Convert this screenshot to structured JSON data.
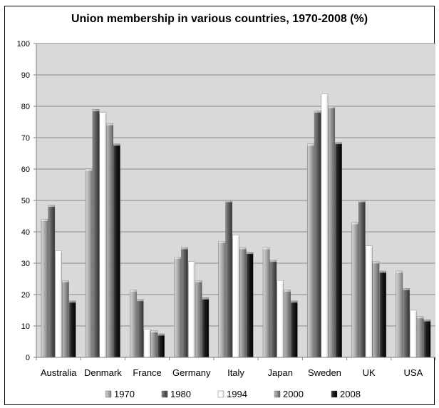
{
  "chart_data": {
    "type": "bar",
    "title": "Union membership in various countries, 1970-2008 (%)",
    "xlabel": "",
    "ylabel": "",
    "ylim": [
      0,
      100
    ],
    "yticks": [
      "0",
      "10",
      "20",
      "30",
      "40",
      "50",
      "60",
      "70",
      "80",
      "90",
      "100"
    ],
    "grid": true,
    "legend_position": "bottom",
    "categories": [
      "Australia",
      "Denmark",
      "France",
      "Germany",
      "Italy",
      "Japan",
      "Sweden",
      "UK",
      "USA"
    ],
    "series": [
      {
        "name": "1970",
        "color": "#a6a6a6",
        "values": [
          44,
          60,
          21.5,
          32,
          37,
          35,
          68,
          43,
          27.5
        ]
      },
      {
        "name": "1980",
        "color": "#595959",
        "values": [
          48.5,
          79,
          18.5,
          35,
          50,
          31,
          78.5,
          50,
          22
        ]
      },
      {
        "name": "1994",
        "color": "#ffffff",
        "values": [
          34,
          78,
          9,
          30.5,
          39,
          24.5,
          84,
          35.5,
          15
        ]
      },
      {
        "name": "2000",
        "color": "#8c8c8c",
        "values": [
          24.5,
          74.5,
          8.5,
          24.5,
          35,
          21.5,
          80,
          30.5,
          13
        ]
      },
      {
        "name": "2008",
        "color": "#000000",
        "values": [
          18,
          68,
          7.5,
          19,
          33.5,
          18,
          68.5,
          27.5,
          12
        ]
      }
    ]
  }
}
